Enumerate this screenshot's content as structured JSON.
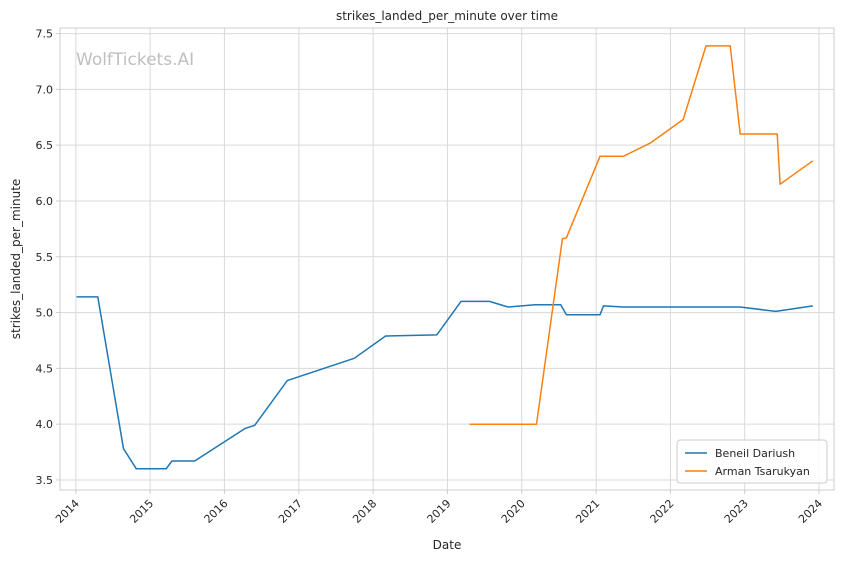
{
  "chart_data": {
    "type": "line",
    "title": "strikes_landed_per_minute over time",
    "xlabel": "Date",
    "ylabel": "strikes_landed_per_minute",
    "x_tick_labels": [
      "2014",
      "2015",
      "2016",
      "2017",
      "2018",
      "2019",
      "2020",
      "2021",
      "2022",
      "2023",
      "2024"
    ],
    "y_tick_labels": [
      "3.5",
      "4.0",
      "4.5",
      "5.0",
      "5.5",
      "6.0",
      "6.5",
      "7.0",
      "7.5"
    ],
    "x_range": [
      "2013-10-15",
      "2024-03-15"
    ],
    "ylim": [
      3.41,
      7.55
    ],
    "grid": true,
    "legend_position": "bottom-right",
    "watermark": "WolfTickets.AI",
    "series": [
      {
        "name": "Beneil Dariush",
        "color": "#1f77b4",
        "points": [
          [
            "2014-01-04",
            5.14
          ],
          [
            "2014-04-19",
            5.14
          ],
          [
            "2014-08-23",
            3.78
          ],
          [
            "2014-10-25",
            3.6
          ],
          [
            "2015-03-21",
            3.6
          ],
          [
            "2015-04-18",
            3.67
          ],
          [
            "2015-08-08",
            3.67
          ],
          [
            "2016-04-10",
            3.96
          ],
          [
            "2016-05-29",
            3.99
          ],
          [
            "2016-11-05",
            4.39
          ],
          [
            "2017-09-30",
            4.59
          ],
          [
            "2018-03-03",
            4.79
          ],
          [
            "2018-11-10",
            4.8
          ],
          [
            "2019-03-09",
            5.1
          ],
          [
            "2019-07-27",
            5.1
          ],
          [
            "2019-10-26",
            5.05
          ],
          [
            "2020-03-07",
            5.07
          ],
          [
            "2020-07-11",
            5.07
          ],
          [
            "2020-08-08",
            4.98
          ],
          [
            "2021-01-20",
            4.98
          ],
          [
            "2021-02-06",
            5.06
          ],
          [
            "2021-05-15",
            5.05
          ],
          [
            "2022-12-10",
            5.05
          ],
          [
            "2023-06-03",
            5.01
          ],
          [
            "2023-12-02",
            5.06
          ]
        ]
      },
      {
        "name": "Arman Tsarukyan",
        "color": "#ff7f0e",
        "points": [
          [
            "2019-04-20",
            4.0
          ],
          [
            "2020-03-14",
            4.0
          ],
          [
            "2020-07-19",
            5.66
          ],
          [
            "2020-08-08",
            5.67
          ],
          [
            "2021-01-20",
            6.4
          ],
          [
            "2021-05-15",
            6.4
          ],
          [
            "2021-09-25",
            6.52
          ],
          [
            "2022-03-05",
            6.73
          ],
          [
            "2022-06-25",
            7.39
          ],
          [
            "2022-10-22",
            7.39
          ],
          [
            "2022-12-10",
            6.6
          ],
          [
            "2023-06-10",
            6.6
          ],
          [
            "2023-06-24",
            6.15
          ],
          [
            "2023-12-02",
            6.36
          ]
        ]
      }
    ]
  }
}
